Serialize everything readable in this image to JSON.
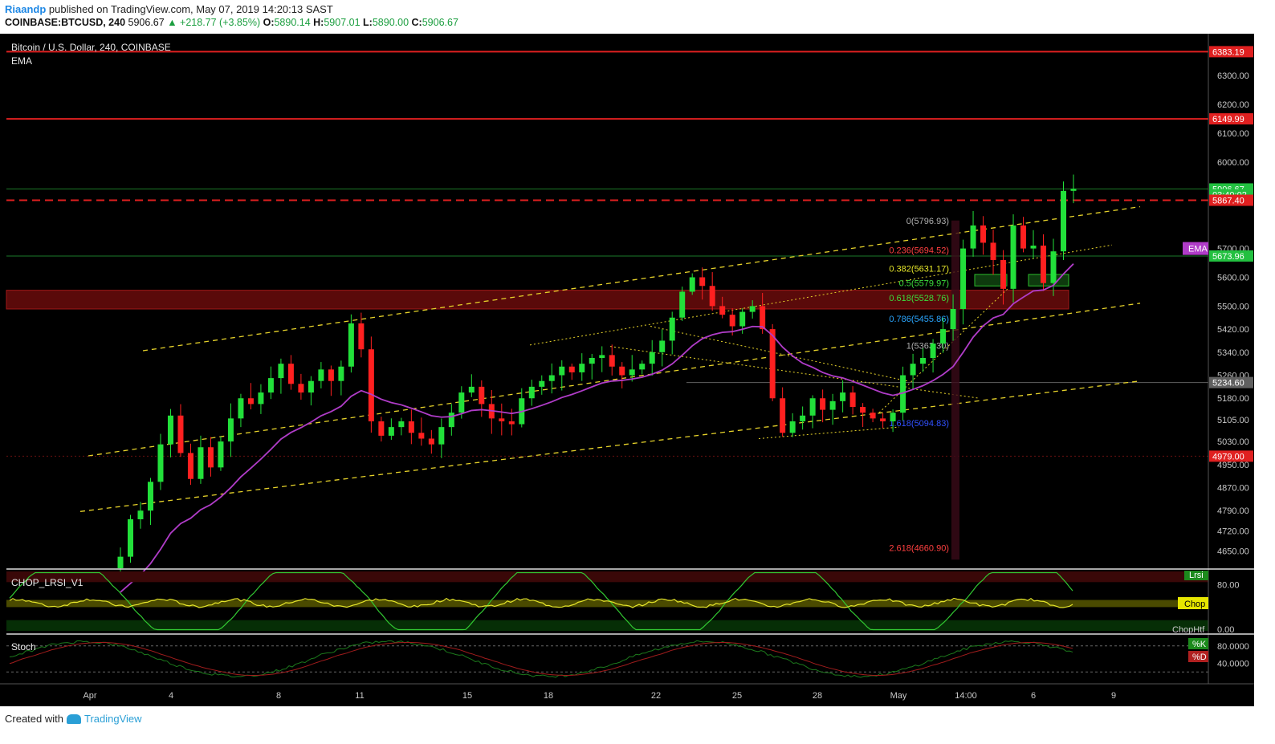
{
  "header": {
    "author": "Riaandp",
    "published_text": "published on TradingView.com, May 07, 2019 14:20:13 SAST",
    "symbol": "COINBASE:BTCUSD, 240",
    "last": "5906.67",
    "change": "▲ +218.77 (+3.85%)",
    "o_label": "O:",
    "o": "5890.14",
    "h_label": "H:",
    "h": "5907.01",
    "l_label": "L:",
    "l": "5890.00",
    "c_label": "C:",
    "c": "5906.67"
  },
  "footer": {
    "created_with": "Created with",
    "brand": "TradingView"
  },
  "colors": {
    "background": "#000000",
    "up": "#22e03a",
    "down": "#ff2020",
    "ema": "#b03cc8",
    "channel": "#e6d22a",
    "resistance": "#e02020",
    "support_zone": "#5a0a0a"
  },
  "chart_data": {
    "type": "candlestick",
    "title": "Bitcoin / U.S. Dollar, 240, COINBASE",
    "indicator_label": "EMA",
    "ylim": [
      4590,
      6440
    ],
    "y_ticks": [
      6300,
      6200,
      6100,
      6000,
      5700,
      5600,
      5500,
      5420,
      5340,
      5260,
      5180,
      5105,
      5030,
      4950,
      4870,
      4790,
      4720,
      4650
    ],
    "y_tick_labels": [
      "6300.00",
      "6200.00",
      "6100.00",
      "6000.00",
      "5700.00",
      "5600.00",
      "5500.00",
      "5420.00",
      "5340.00",
      "5260.00",
      "5180.00",
      "5105.00",
      "5030.00",
      "4950.00",
      "4870.00",
      "4790.00",
      "4720.00",
      "4650.00"
    ],
    "x_labels": [
      "Apr",
      "4",
      "8",
      "11",
      "15",
      "18",
      "22",
      "25",
      "28",
      "May",
      "14:00",
      "6",
      "9"
    ],
    "price_labels": [
      {
        "text": "6383.19",
        "value": 6383.19,
        "color": "#e02020"
      },
      {
        "text": "6149.99",
        "value": 6149.99,
        "color": "#e02020"
      },
      {
        "text": "5906.67",
        "value": 5906.67,
        "color": "#22c040"
      },
      {
        "text": "03:40:02",
        "value": 5887,
        "color": "#22c040"
      },
      {
        "text": "5867.40",
        "value": 5867.4,
        "color": "#e02020"
      },
      {
        "text": "5673.96",
        "value": 5673.96,
        "color": "#22c040"
      },
      {
        "text": "5234.60",
        "value": 5234.6,
        "color": "#606060"
      },
      {
        "text": "4979.00",
        "value": 4979.0,
        "color": "#e02020"
      }
    ],
    "ema_tag": "EMA",
    "fibonacci": [
      {
        "text": "0(5796.93)",
        "value": 5796.93,
        "color": "#b0b0b0"
      },
      {
        "text": "0.236(5694.52)",
        "value": 5694.52,
        "color": "#ff4040"
      },
      {
        "text": "0.382(5631.17)",
        "value": 5631.17,
        "color": "#e6e62a"
      },
      {
        "text": "0.5(5579.97)",
        "value": 5579.97,
        "color": "#3cdc3c"
      },
      {
        "text": "0.618(5528.76)",
        "value": 5528.76,
        "color": "#3cdc3c"
      },
      {
        "text": "0.786(5455.86)",
        "value": 5455.86,
        "color": "#2aa6ff"
      },
      {
        "text": "1(5363.30)",
        "value": 5363.3,
        "color": "#b0b0b0"
      },
      {
        "text": "1.618(5094.83)",
        "value": 5094.83,
        "color": "#3050ff"
      },
      {
        "text": "2.618(4660.90)",
        "value": 4660.9,
        "color": "#ff4040"
      }
    ],
    "series": [
      {
        "name": "BTCUSD",
        "close": [
          4630,
          4760,
          4790,
          4890,
          5020,
          5120,
          4990,
          4900,
          5010,
          4940,
          5030,
          5110,
          5180,
          5160,
          5200,
          5250,
          5300,
          5230,
          5200,
          5240,
          5280,
          5240,
          5290,
          5440,
          5350,
          5100,
          5050,
          5080,
          5100,
          5060,
          5040,
          5020,
          5080,
          5130,
          5200,
          5220,
          5160,
          5110,
          5100,
          5090,
          5180,
          5220,
          5240,
          5260,
          5290,
          5270,
          5300,
          5320,
          5330,
          5290,
          5260,
          5280,
          5300,
          5340,
          5380,
          5460,
          5550,
          5600,
          5570,
          5500,
          5470,
          5430,
          5480,
          5500,
          5420,
          5180,
          5060,
          5100,
          5120,
          5180,
          5140,
          5170,
          5200,
          5150,
          5130,
          5110,
          5100,
          5130,
          5260,
          5300,
          5320,
          5370,
          5420,
          5490,
          5700,
          5780,
          5720,
          5660,
          5560,
          5780,
          5700,
          5710,
          5580,
          5690,
          5900,
          5907
        ]
      },
      {
        "name": "EMA"
      }
    ]
  },
  "chop_panel": {
    "title": "CHOP_LRSI_V1",
    "lrsi_tag": "Lrsi",
    "chop_tag": "Chop",
    "htf_tag": "ChopHtf",
    "y_labels": [
      "80.00",
      "0.00"
    ]
  },
  "stoch_panel": {
    "title": "Stoch",
    "k_tag": "%K",
    "d_tag": "%D",
    "y_labels": [
      "80.0000",
      "40.0000"
    ]
  }
}
